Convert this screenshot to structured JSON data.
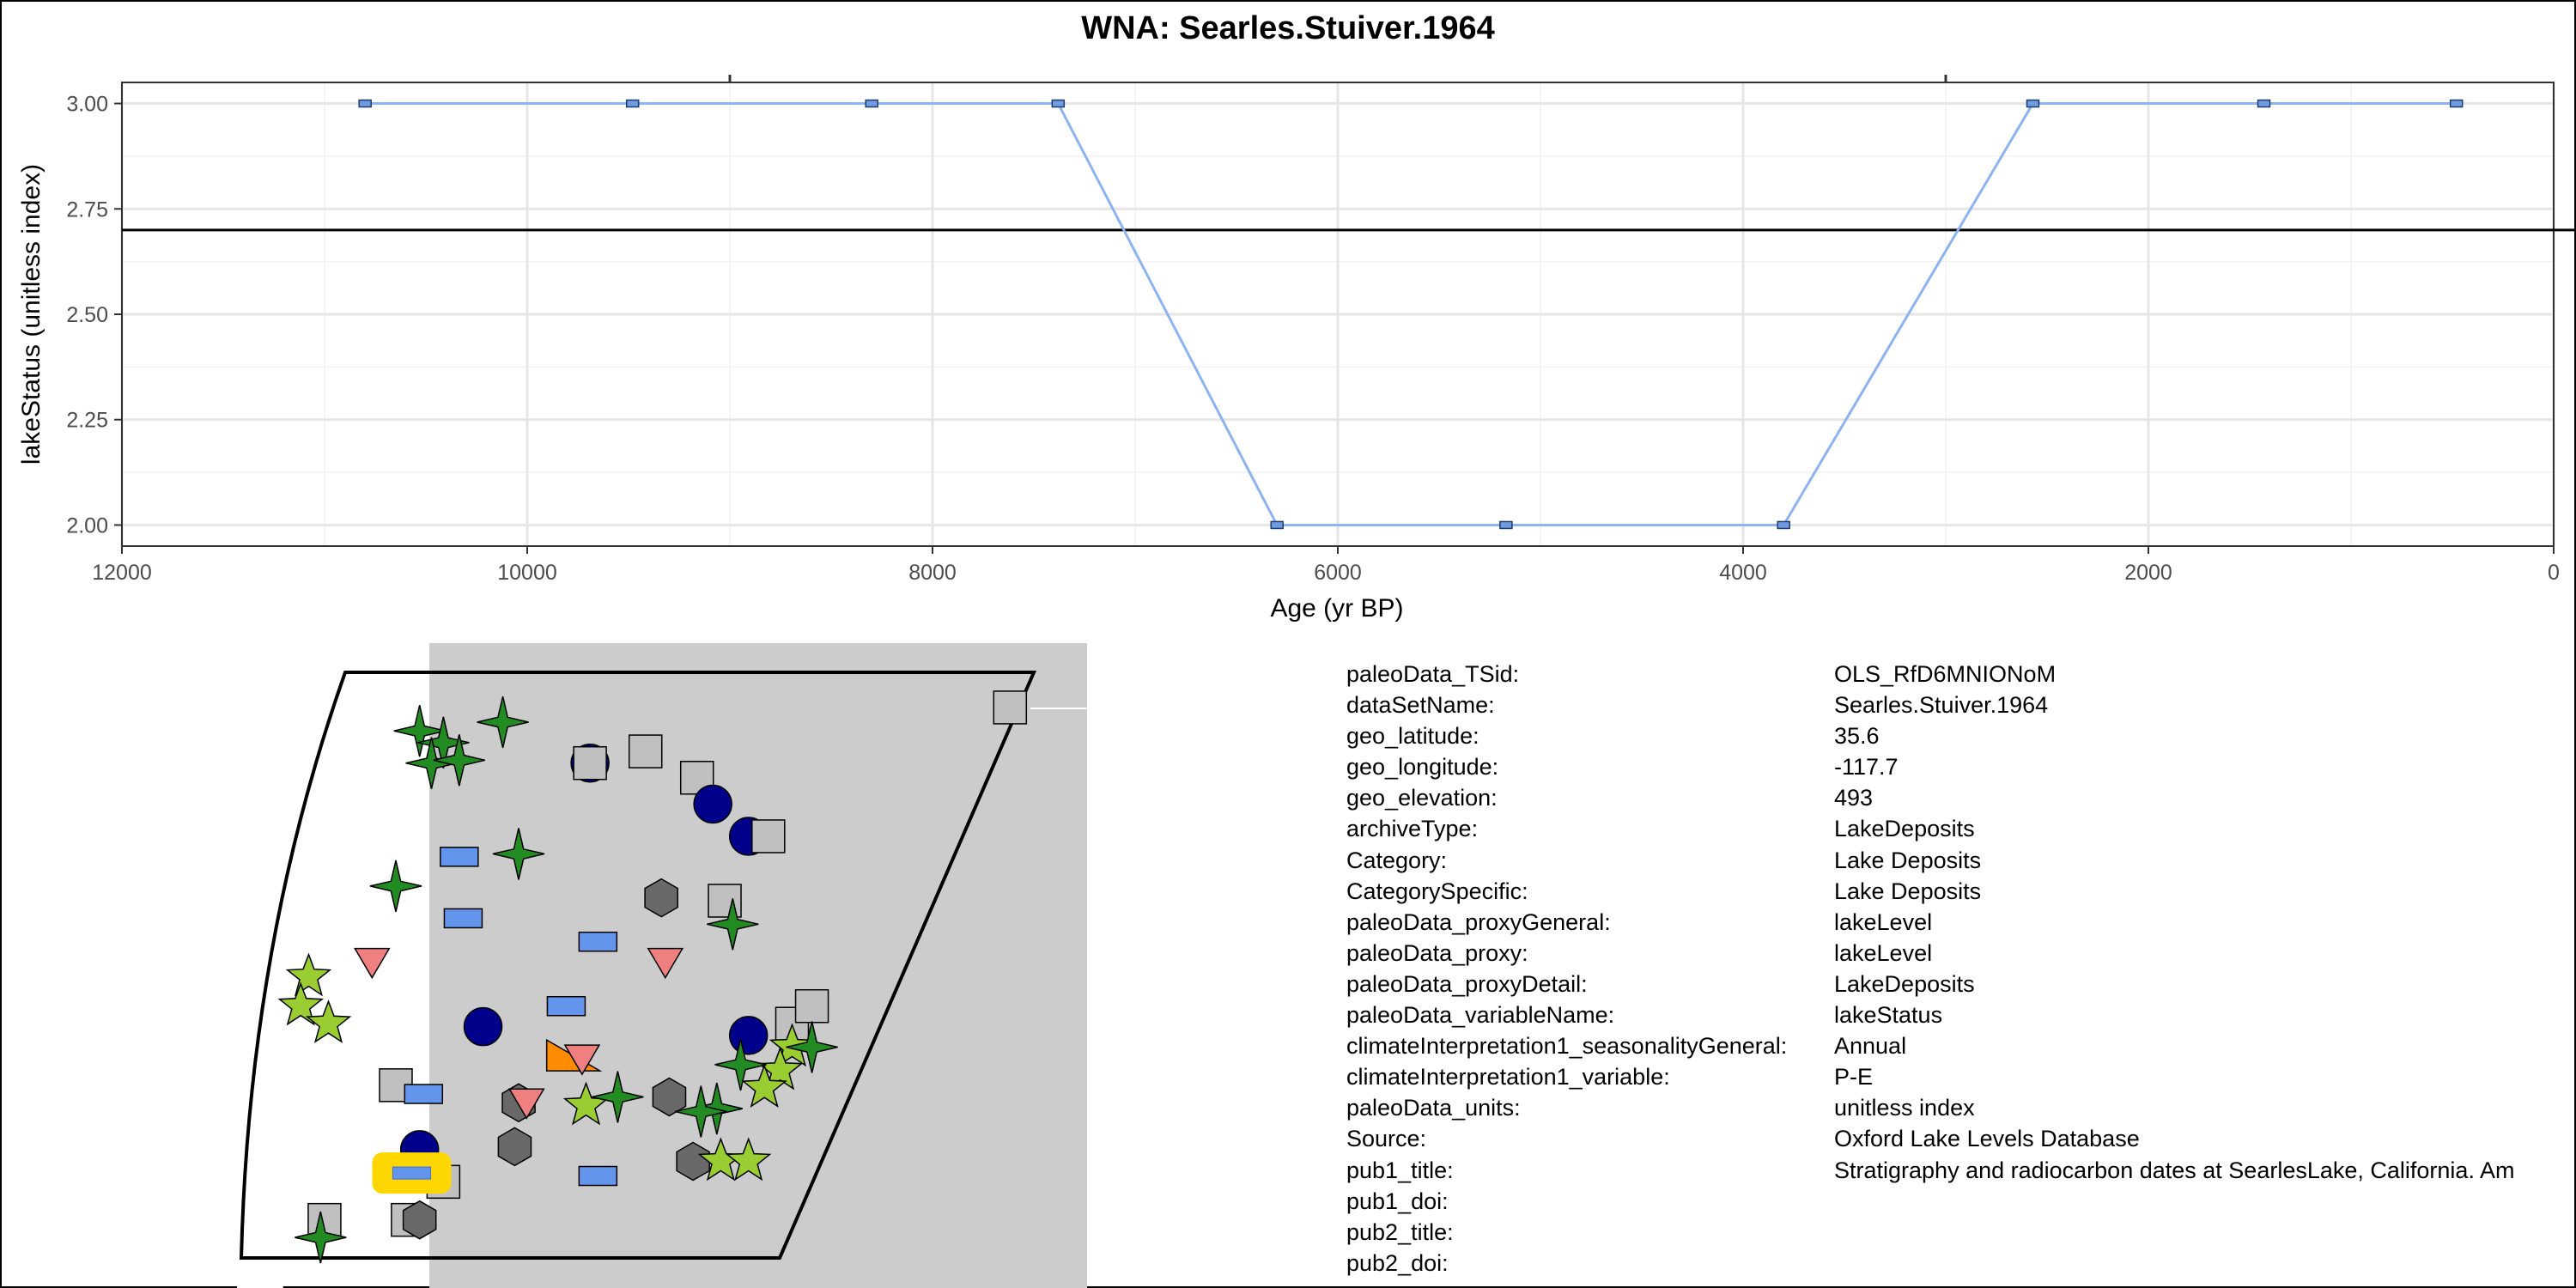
{
  "chart_data": {
    "type": "line",
    "title": "WNA: Searles.Stuiver.1964",
    "xlabel": "Age (yr BP)",
    "ylabel": "lakeStatus (unitless index)",
    "xlim": [
      12000,
      0
    ],
    "ylim": [
      3.05,
      1.95
    ],
    "x_reversed": true,
    "y_reversed": true,
    "x_ticks": [
      12000,
      10000,
      8000,
      6000,
      4000,
      2000,
      0
    ],
    "y_ticks": [
      2.0,
      2.25,
      2.5,
      2.75,
      3.0
    ],
    "y_tick_labels": [
      "2.00",
      "2.25",
      "2.50",
      "2.75",
      "3.00"
    ],
    "top_ticks": [
      9000,
      3000
    ],
    "reference_line_y": 2.7,
    "grid": true,
    "series_color": "#8db4f0",
    "marker_color": "#6f9be0",
    "points": [
      {
        "x": 10800,
        "y": 3
      },
      {
        "x": 9480,
        "y": 3
      },
      {
        "x": 8300,
        "y": 3
      },
      {
        "x": 7380,
        "y": 3
      },
      {
        "x": 6300,
        "y": 2
      },
      {
        "x": 5170,
        "y": 2
      },
      {
        "x": 3800,
        "y": 2
      },
      {
        "x": 2570,
        "y": 3
      },
      {
        "x": 1430,
        "y": 3
      },
      {
        "x": 480,
        "y": 3
      }
    ]
  },
  "map": {
    "land_color": "#cccccc",
    "markers": [
      {
        "shape": "star4",
        "color": "#228b22",
        "x": 0.225,
        "y": 0.1
      },
      {
        "shape": "star4",
        "color": "#228b22",
        "x": 0.255,
        "y": 0.12
      },
      {
        "shape": "star4",
        "color": "#228b22",
        "x": 0.24,
        "y": 0.155
      },
      {
        "shape": "star4",
        "color": "#228b22",
        "x": 0.275,
        "y": 0.15
      },
      {
        "shape": "star4",
        "color": "#228b22",
        "x": 0.33,
        "y": 0.085
      },
      {
        "shape": "circle",
        "color": "#00008b",
        "x": 0.44,
        "y": 0.155
      },
      {
        "shape": "square",
        "color": "#c0c0c0",
        "x": 0.44,
        "y": 0.155
      },
      {
        "shape": "square",
        "color": "#c0c0c0",
        "x": 0.51,
        "y": 0.135
      },
      {
        "shape": "square",
        "color": "#c0c0c0",
        "x": 0.575,
        "y": 0.18
      },
      {
        "shape": "square",
        "color": "#c0c0c0",
        "x": 0.97,
        "y": 0.06
      },
      {
        "shape": "circle",
        "color": "#00008b",
        "x": 0.595,
        "y": 0.225
      },
      {
        "shape": "rect",
        "color": "#6495ed",
        "x": 0.275,
        "y": 0.315
      },
      {
        "shape": "star4",
        "color": "#228b22",
        "x": 0.35,
        "y": 0.31
      },
      {
        "shape": "star4",
        "color": "#228b22",
        "x": 0.195,
        "y": 0.365
      },
      {
        "shape": "circle",
        "color": "#00008b",
        "x": 0.64,
        "y": 0.28
      },
      {
        "shape": "square",
        "color": "#c0c0c0",
        "x": 0.665,
        "y": 0.28
      },
      {
        "shape": "hexagon",
        "color": "#696969",
        "x": 0.53,
        "y": 0.385
      },
      {
        "shape": "square",
        "color": "#c0c0c0",
        "x": 0.61,
        "y": 0.39
      },
      {
        "shape": "star4",
        "color": "#228b22",
        "x": 0.62,
        "y": 0.43
      },
      {
        "shape": "rect",
        "color": "#6495ed",
        "x": 0.28,
        "y": 0.42
      },
      {
        "shape": "rect",
        "color": "#6495ed",
        "x": 0.45,
        "y": 0.46
      },
      {
        "shape": "triangle",
        "color": "#f08080",
        "x": 0.165,
        "y": 0.495
      },
      {
        "shape": "triangle",
        "color": "#f08080",
        "x": 0.535,
        "y": 0.495
      },
      {
        "shape": "star5",
        "color": "#9acd32",
        "x": 0.085,
        "y": 0.52
      },
      {
        "shape": "star5",
        "color": "#9acd32",
        "x": 0.075,
        "y": 0.57
      },
      {
        "shape": "star5",
        "color": "#9acd32",
        "x": 0.11,
        "y": 0.6
      },
      {
        "shape": "square",
        "color": "#c0c0c0",
        "x": 0.695,
        "y": 0.6
      },
      {
        "shape": "square",
        "color": "#c0c0c0",
        "x": 0.72,
        "y": 0.57
      },
      {
        "shape": "star5",
        "color": "#9acd32",
        "x": 0.695,
        "y": 0.64
      },
      {
        "shape": "star4",
        "color": "#228b22",
        "x": 0.72,
        "y": 0.64
      },
      {
        "shape": "rect",
        "color": "#6495ed",
        "x": 0.41,
        "y": 0.57
      },
      {
        "shape": "circle",
        "color": "#00008b",
        "x": 0.305,
        "y": 0.605
      },
      {
        "shape": "circle",
        "color": "#00008b",
        "x": 0.64,
        "y": 0.62
      },
      {
        "shape": "wedge",
        "color": "#ff8c00",
        "x": 0.42,
        "y": 0.66
      },
      {
        "shape": "triangle",
        "color": "#f08080",
        "x": 0.43,
        "y": 0.66
      },
      {
        "shape": "star5",
        "color": "#9acd32",
        "x": 0.68,
        "y": 0.68
      },
      {
        "shape": "star4",
        "color": "#228b22",
        "x": 0.63,
        "y": 0.67
      },
      {
        "shape": "star5",
        "color": "#9acd32",
        "x": 0.66,
        "y": 0.71
      },
      {
        "shape": "square",
        "color": "#c0c0c0",
        "x": 0.195,
        "y": 0.705
      },
      {
        "shape": "rect",
        "color": "#6495ed",
        "x": 0.23,
        "y": 0.72
      },
      {
        "shape": "hexagon",
        "color": "#696969",
        "x": 0.35,
        "y": 0.735
      },
      {
        "shape": "triangle",
        "color": "#f08080",
        "x": 0.36,
        "y": 0.735
      },
      {
        "shape": "star5",
        "color": "#9acd32",
        "x": 0.435,
        "y": 0.74
      },
      {
        "shape": "star4",
        "color": "#228b22",
        "x": 0.475,
        "y": 0.725
      },
      {
        "shape": "hexagon",
        "color": "#696969",
        "x": 0.54,
        "y": 0.725
      },
      {
        "shape": "star4",
        "color": "#228b22",
        "x": 0.6,
        "y": 0.745
      },
      {
        "shape": "star4",
        "color": "#228b22",
        "x": 0.58,
        "y": 0.75
      },
      {
        "shape": "circle",
        "color": "#00008b",
        "x": 0.225,
        "y": 0.815
      },
      {
        "shape": "hexagon",
        "color": "#696969",
        "x": 0.345,
        "y": 0.81
      },
      {
        "shape": "hexagon",
        "color": "#696969",
        "x": 0.57,
        "y": 0.835
      },
      {
        "shape": "star5",
        "color": "#9acd32",
        "x": 0.605,
        "y": 0.835
      },
      {
        "shape": "star5",
        "color": "#9acd32",
        "x": 0.64,
        "y": 0.835
      },
      {
        "shape": "rect",
        "color": "#6495ed",
        "x": 0.45,
        "y": 0.86
      },
      {
        "shape": "square",
        "color": "#c0c0c0",
        "x": 0.255,
        "y": 0.87
      },
      {
        "shape": "highlight",
        "color": "#ffd700",
        "x": 0.215,
        "y": 0.855
      },
      {
        "shape": "square",
        "color": "#c0c0c0",
        "x": 0.105,
        "y": 0.935
      },
      {
        "shape": "square",
        "color": "#c0c0c0",
        "x": 0.21,
        "y": 0.935
      },
      {
        "shape": "hexagon",
        "color": "#696969",
        "x": 0.225,
        "y": 0.935
      },
      {
        "shape": "star4",
        "color": "#228b22",
        "x": 0.1,
        "y": 0.965
      }
    ]
  },
  "metadata": [
    {
      "key": "paleoData_TSid:",
      "value": "OLS_RfD6MNIONoM"
    },
    {
      "key": "dataSetName:",
      "value": "Searles.Stuiver.1964"
    },
    {
      "key": "geo_latitude:",
      "value": "35.6"
    },
    {
      "key": "geo_longitude:",
      "value": "-117.7"
    },
    {
      "key": "geo_elevation:",
      "value": "493"
    },
    {
      "key": "archiveType:",
      "value": "LakeDeposits"
    },
    {
      "key": "Category:",
      "value": "Lake Deposits"
    },
    {
      "key": "CategorySpecific:",
      "value": "Lake Deposits"
    },
    {
      "key": "paleoData_proxyGeneral:",
      "value": "lakeLevel"
    },
    {
      "key": "paleoData_proxy:",
      "value": "lakeLevel"
    },
    {
      "key": "paleoData_proxyDetail:",
      "value": "LakeDeposits"
    },
    {
      "key": "paleoData_variableName:",
      "value": "lakeStatus"
    },
    {
      "key": "climateInterpretation1_seasonalityGeneral:",
      "value": "Annual"
    },
    {
      "key": "climateInterpretation1_variable:",
      "value": "P-E"
    },
    {
      "key": "paleoData_units:",
      "value": "unitless index"
    },
    {
      "key": "Source:",
      "value": "Oxford Lake Levels Database"
    },
    {
      "key": "pub1_title:",
      "value": "Stratigraphy and radiocarbon dates at SearlesLake, California. Am"
    },
    {
      "key": "pub1_doi:",
      "value": ""
    },
    {
      "key": "pub2_title:",
      "value": ""
    },
    {
      "key": "pub2_doi:",
      "value": ""
    }
  ]
}
